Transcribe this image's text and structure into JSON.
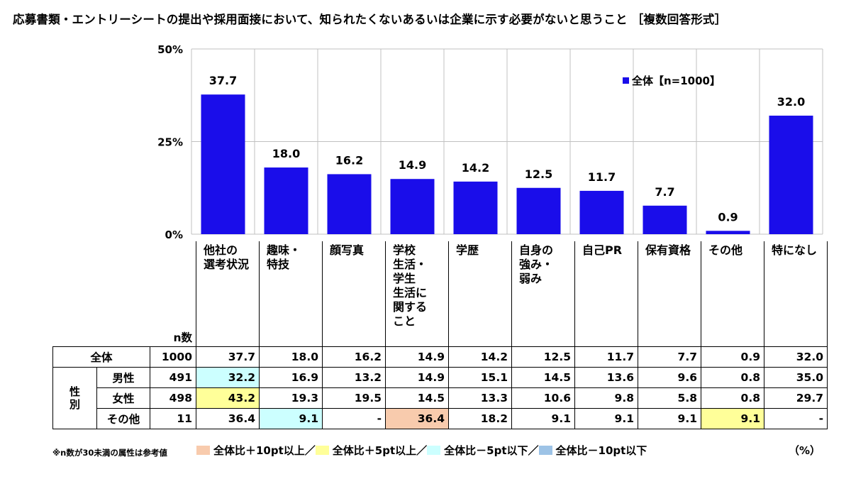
{
  "title": "応募書類・エントリーシートの提出や採用面接において、知られたくないあるいは企業に示す必要がないと思うこと ［複数回答形式］",
  "legend_label": "全体【n=1000】",
  "colors": {
    "bar": "#1a0dea",
    "grid": "#c0c0c0",
    "highlight_plus10": "#f8cbad",
    "highlight_plus5": "#ffff99",
    "highlight_minus5": "#ccffff",
    "highlight_minus10": "#9dc3e6"
  },
  "chart_data": {
    "type": "bar",
    "title": "応募書類・エントリーシートの提出や採用面接において、知られたくないあるいは企業に示す必要がないと思うこと ［複数回答形式］",
    "categories": [
      "他社の選考状況",
      "趣味・特技",
      "顔写真",
      "学校生活・学生生活に関すること",
      "学歴",
      "自身の強み・弱み",
      "自己PR",
      "保有資格",
      "その他",
      "特になし"
    ],
    "series": [
      {
        "name": "全体【n=1000】",
        "values": [
          37.7,
          18.0,
          16.2,
          14.9,
          14.2,
          12.5,
          11.7,
          7.7,
          0.9,
          32.0
        ]
      }
    ],
    "value_labels": [
      "37.7",
      "18.0",
      "16.2",
      "14.9",
      "14.2",
      "12.5",
      "11.7",
      "7.7",
      "0.9",
      "32.0"
    ],
    "ylim": [
      0,
      50
    ],
    "yticks": [
      "0%",
      "25%",
      "50%"
    ],
    "grid": true,
    "legend_position": "top-right"
  },
  "table": {
    "headers": [
      [
        "他社の",
        "選考状況"
      ],
      [
        "趣味・",
        "特技"
      ],
      [
        "顔写真"
      ],
      [
        "学校",
        "生活・",
        "学生",
        "生活に",
        "関する",
        "こと"
      ],
      [
        "学歴"
      ],
      [
        "自身の",
        "強み・",
        "弱み"
      ],
      [
        "自己PR"
      ],
      [
        "保有資格"
      ],
      [
        "その他"
      ],
      [
        "特になし"
      ]
    ],
    "n_header": "n数",
    "group_label": "性別",
    "rows": [
      {
        "label": "全体",
        "n": "1000",
        "values": [
          "37.7",
          "18.0",
          "16.2",
          "14.9",
          "14.2",
          "12.5",
          "11.7",
          "7.7",
          "0.9",
          "32.0"
        ],
        "highlights": [
          "",
          "",
          "",
          "",
          "",
          "",
          "",
          "",
          "",
          ""
        ]
      },
      {
        "label": "男性",
        "n": "491",
        "values": [
          "32.2",
          "16.9",
          "13.2",
          "14.9",
          "15.1",
          "14.5",
          "13.6",
          "9.6",
          "0.8",
          "35.0"
        ],
        "highlights": [
          "minus5",
          "",
          "",
          "",
          "",
          "",
          "",
          "",
          "",
          ""
        ]
      },
      {
        "label": "女性",
        "n": "498",
        "values": [
          "43.2",
          "19.3",
          "19.5",
          "14.5",
          "13.3",
          "10.6",
          "9.8",
          "5.8",
          "0.8",
          "29.7"
        ],
        "highlights": [
          "plus5",
          "",
          "",
          "",
          "",
          "",
          "",
          "",
          "",
          ""
        ]
      },
      {
        "label": "その他",
        "n": "11",
        "values": [
          "36.4",
          "9.1",
          "-",
          "36.4",
          "18.2",
          "9.1",
          "9.1",
          "9.1",
          "9.1",
          "-"
        ],
        "highlights": [
          "",
          "minus5",
          "",
          "plus10",
          "",
          "",
          "",
          "",
          "plus5",
          ""
        ]
      }
    ]
  },
  "footnote": "※n数が30未満の属性は参考値",
  "highlight_keys": [
    {
      "label": "全体比＋10pt以上／",
      "color": "#f8cbad"
    },
    {
      "label": "全体比＋5pt以上／",
      "color": "#ffff99"
    },
    {
      "label": "全体比－5pt以下／",
      "color": "#ccffff"
    },
    {
      "label": "全体比－10pt以下",
      "color": "#9dc3e6"
    }
  ],
  "unit": "（%）"
}
